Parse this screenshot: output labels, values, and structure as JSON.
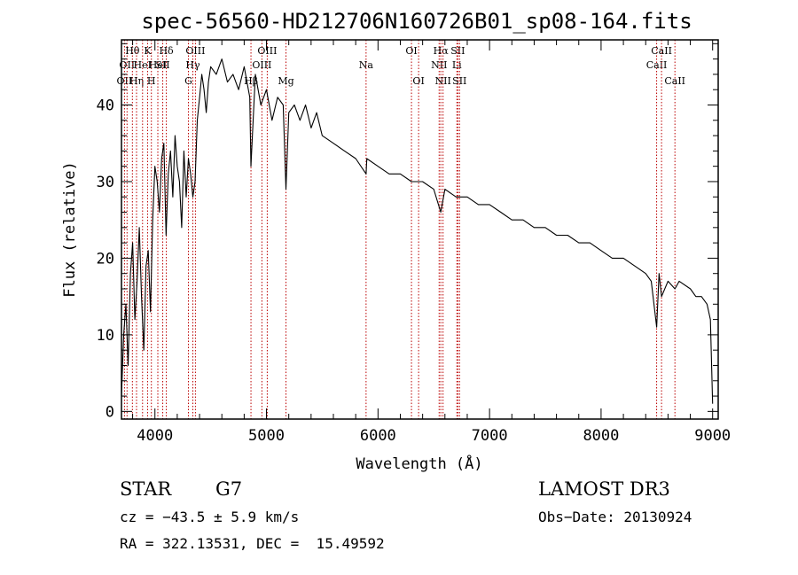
{
  "chart_data": {
    "type": "line",
    "title": "spec-56560-HD212706N160726B01_sp08-164.fits",
    "xlabel": "Wavelength (Å)",
    "ylabel": "Flux (relative)",
    "xlim": [
      3700,
      9050
    ],
    "ylim": [
      -1,
      48.5
    ],
    "x_ticks": [
      4000,
      5000,
      6000,
      7000,
      8000,
      9000
    ],
    "y_ticks": [
      0,
      10,
      20,
      30,
      40
    ],
    "grid": false,
    "series": [
      {
        "x": [
          3700,
          3720,
          3740,
          3760,
          3780,
          3800,
          3820,
          3840,
          3860,
          3880,
          3900,
          3920,
          3940,
          3960,
          3980,
          4000,
          4020,
          4040,
          4060,
          4080,
          4100,
          4120,
          4140,
          4160,
          4180,
          4200,
          4220,
          4240,
          4260,
          4280,
          4300,
          4320,
          4340,
          4360,
          4380,
          4400,
          4420,
          4440,
          4460,
          4480,
          4500,
          4550,
          4600,
          4650,
          4700,
          4750,
          4800,
          4850,
          4861,
          4900,
          4950,
          5000,
          5050,
          5100,
          5150,
          5175,
          5200,
          5250,
          5300,
          5350,
          5400,
          5450,
          5500,
          5600,
          5700,
          5800,
          5893,
          5900,
          6000,
          6100,
          6200,
          6300,
          6400,
          6500,
          6563,
          6600,
          6700,
          6800,
          6900,
          7000,
          7100,
          7200,
          7300,
          7400,
          7500,
          7600,
          7700,
          7800,
          7900,
          8000,
          8100,
          8200,
          8300,
          8400,
          8450,
          8498,
          8520,
          8542,
          8600,
          8662,
          8700,
          8800,
          8850,
          8900,
          8950,
          8980,
          9000
        ],
        "values": [
          2,
          10,
          14,
          6,
          18,
          22,
          12,
          17,
          24,
          15,
          8,
          19,
          21,
          13,
          25,
          32,
          30,
          26,
          33,
          35,
          23,
          31,
          34,
          28,
          36,
          32,
          30,
          24,
          34,
          28,
          33,
          31,
          28,
          30,
          38,
          41,
          44,
          42,
          39,
          43,
          45,
          44,
          46,
          43,
          44,
          42,
          45,
          41,
          32,
          44,
          40,
          42,
          38,
          41,
          40,
          29,
          39,
          40,
          38,
          40,
          37,
          39,
          36,
          35,
          34,
          33,
          31,
          33,
          32,
          31,
          31,
          30,
          30,
          29,
          26,
          29,
          28,
          28,
          27,
          27,
          26,
          25,
          25,
          24,
          24,
          23,
          23,
          22,
          22,
          21,
          20,
          20,
          19,
          18,
          17,
          11,
          18,
          15,
          17,
          16,
          17,
          16,
          15,
          15,
          14,
          12,
          1
        ],
        "color": "#000000"
      }
    ],
    "lines_color": "#bb0000",
    "spectral_lines": [
      {
        "x": 3727,
        "label": "OII",
        "row": 3
      },
      {
        "x": 3750,
        "label": "OII",
        "row": 2
      },
      {
        "x": 3798,
        "label": "Hθ",
        "row": 1
      },
      {
        "x": 3835,
        "label": "Hη",
        "row": 3
      },
      {
        "x": 3889,
        "label": "HeI",
        "row": 2
      },
      {
        "x": 3934,
        "label": "K",
        "row": 1
      },
      {
        "x": 3968,
        "label": "H",
        "row": 3
      },
      {
        "x": 4026,
        "label": "HeI",
        "row": 2
      },
      {
        "x": 4070,
        "label": "SII",
        "row": 2
      },
      {
        "x": 4102,
        "label": "Hδ",
        "row": 1
      },
      {
        "x": 4300,
        "label": "G",
        "row": 3
      },
      {
        "x": 4340,
        "label": "Hγ",
        "row": 2
      },
      {
        "x": 4363,
        "label": "OIII",
        "row": 1
      },
      {
        "x": 4861,
        "label": "Hβ",
        "row": 3
      },
      {
        "x": 4959,
        "label": "OIII",
        "row": 2
      },
      {
        "x": 5007,
        "label": "OIII",
        "row": 1
      },
      {
        "x": 5175,
        "label": "Mg",
        "row": 3
      },
      {
        "x": 5893,
        "label": "Na",
        "row": 2
      },
      {
        "x": 6300,
        "label": "OI",
        "row": 1
      },
      {
        "x": 6364,
        "label": "OI",
        "row": 3
      },
      {
        "x": 6548,
        "label": "NII",
        "row": 2
      },
      {
        "x": 6563,
        "label": "Hα",
        "row": 1
      },
      {
        "x": 6583,
        "label": "NII",
        "row": 3
      },
      {
        "x": 6707,
        "label": "Li",
        "row": 2
      },
      {
        "x": 6716,
        "label": "SII",
        "row": 1
      },
      {
        "x": 6731,
        "label": "SII",
        "row": 3
      },
      {
        "x": 8498,
        "label": "CaII",
        "row": 2
      },
      {
        "x": 8542,
        "label": "CaII",
        "row": 1
      },
      {
        "x": 8662,
        "label": "CaII",
        "row": 3
      }
    ]
  },
  "info": {
    "object_class": "STAR",
    "subclass": "G7",
    "survey": "LAMOST DR3",
    "cz": "cz = −43.5 ± 5.9 km/s",
    "obs_date": "Obs−Date: 20130924",
    "coords": "RA = 322.13531, DEC =  15.49592"
  }
}
